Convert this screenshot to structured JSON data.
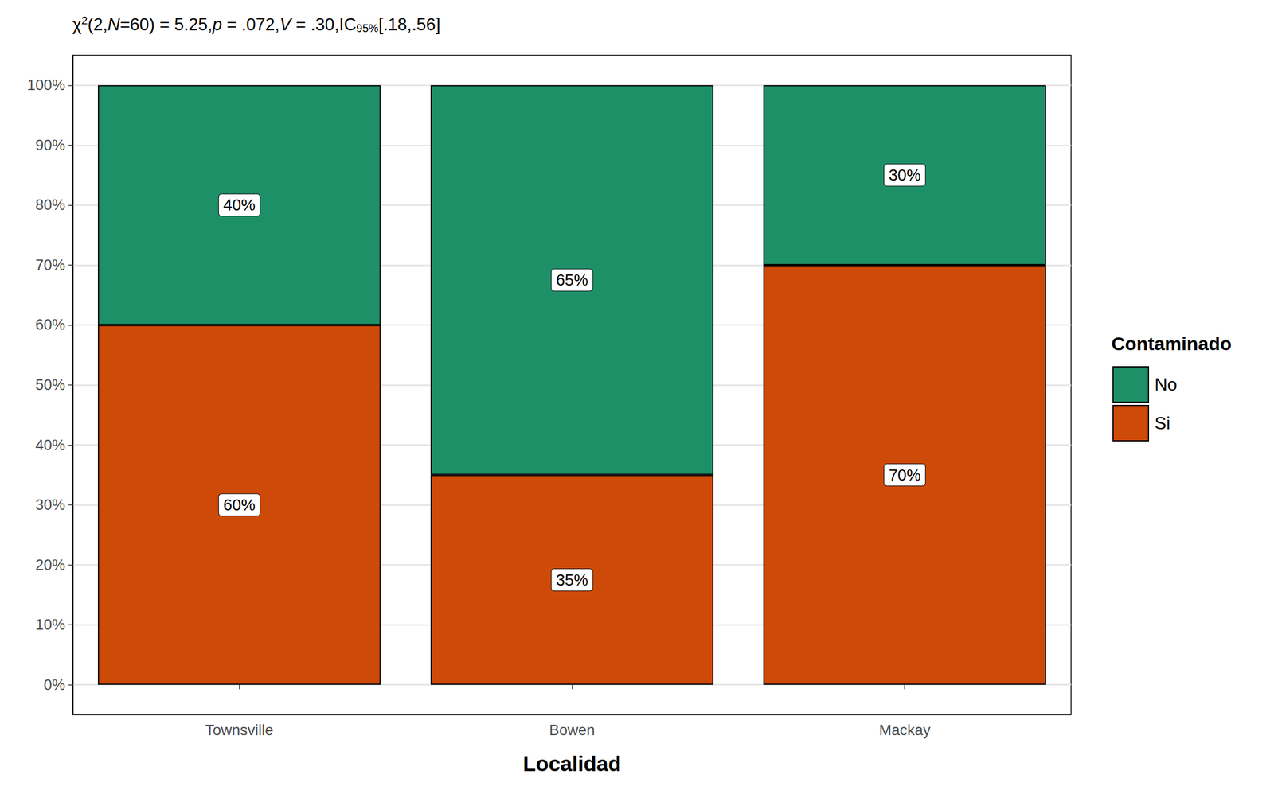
{
  "chart_data": {
    "type": "bar",
    "title": "χ2(2,N=60) = 5.25,p = .072,V = .30,IC95%[.18,.56]",
    "x_label": "Localidad",
    "legend_title": "Contaminado",
    "categories": [
      "Townsville",
      "Bowen",
      "Mackay"
    ],
    "series": [
      {
        "name": "No",
        "color": "#1E9068",
        "values": [
          40,
          65,
          30
        ],
        "value_labels": [
          "40%",
          "65%",
          "30%"
        ]
      },
      {
        "name": "Si",
        "color": "#CD4A08",
        "values": [
          60,
          35,
          70
        ],
        "value_labels": [
          "60%",
          "35%",
          "70%"
        ]
      }
    ],
    "ylim": [
      -5,
      105
    ],
    "yticks": [
      {
        "value": 0,
        "label": "0%"
      },
      {
        "value": 10,
        "label": "10%"
      },
      {
        "value": 20,
        "label": "20%"
      },
      {
        "value": 30,
        "label": "30%"
      },
      {
        "value": 40,
        "label": "40%"
      },
      {
        "value": 50,
        "label": "50%"
      },
      {
        "value": 60,
        "label": "60%"
      },
      {
        "value": 70,
        "label": "70%"
      },
      {
        "value": 80,
        "label": "80%"
      },
      {
        "value": 90,
        "label": "90%"
      },
      {
        "value": 100,
        "label": "100%"
      }
    ],
    "stacked": true,
    "data_labels": true,
    "grid": true,
    "legend": "right"
  }
}
